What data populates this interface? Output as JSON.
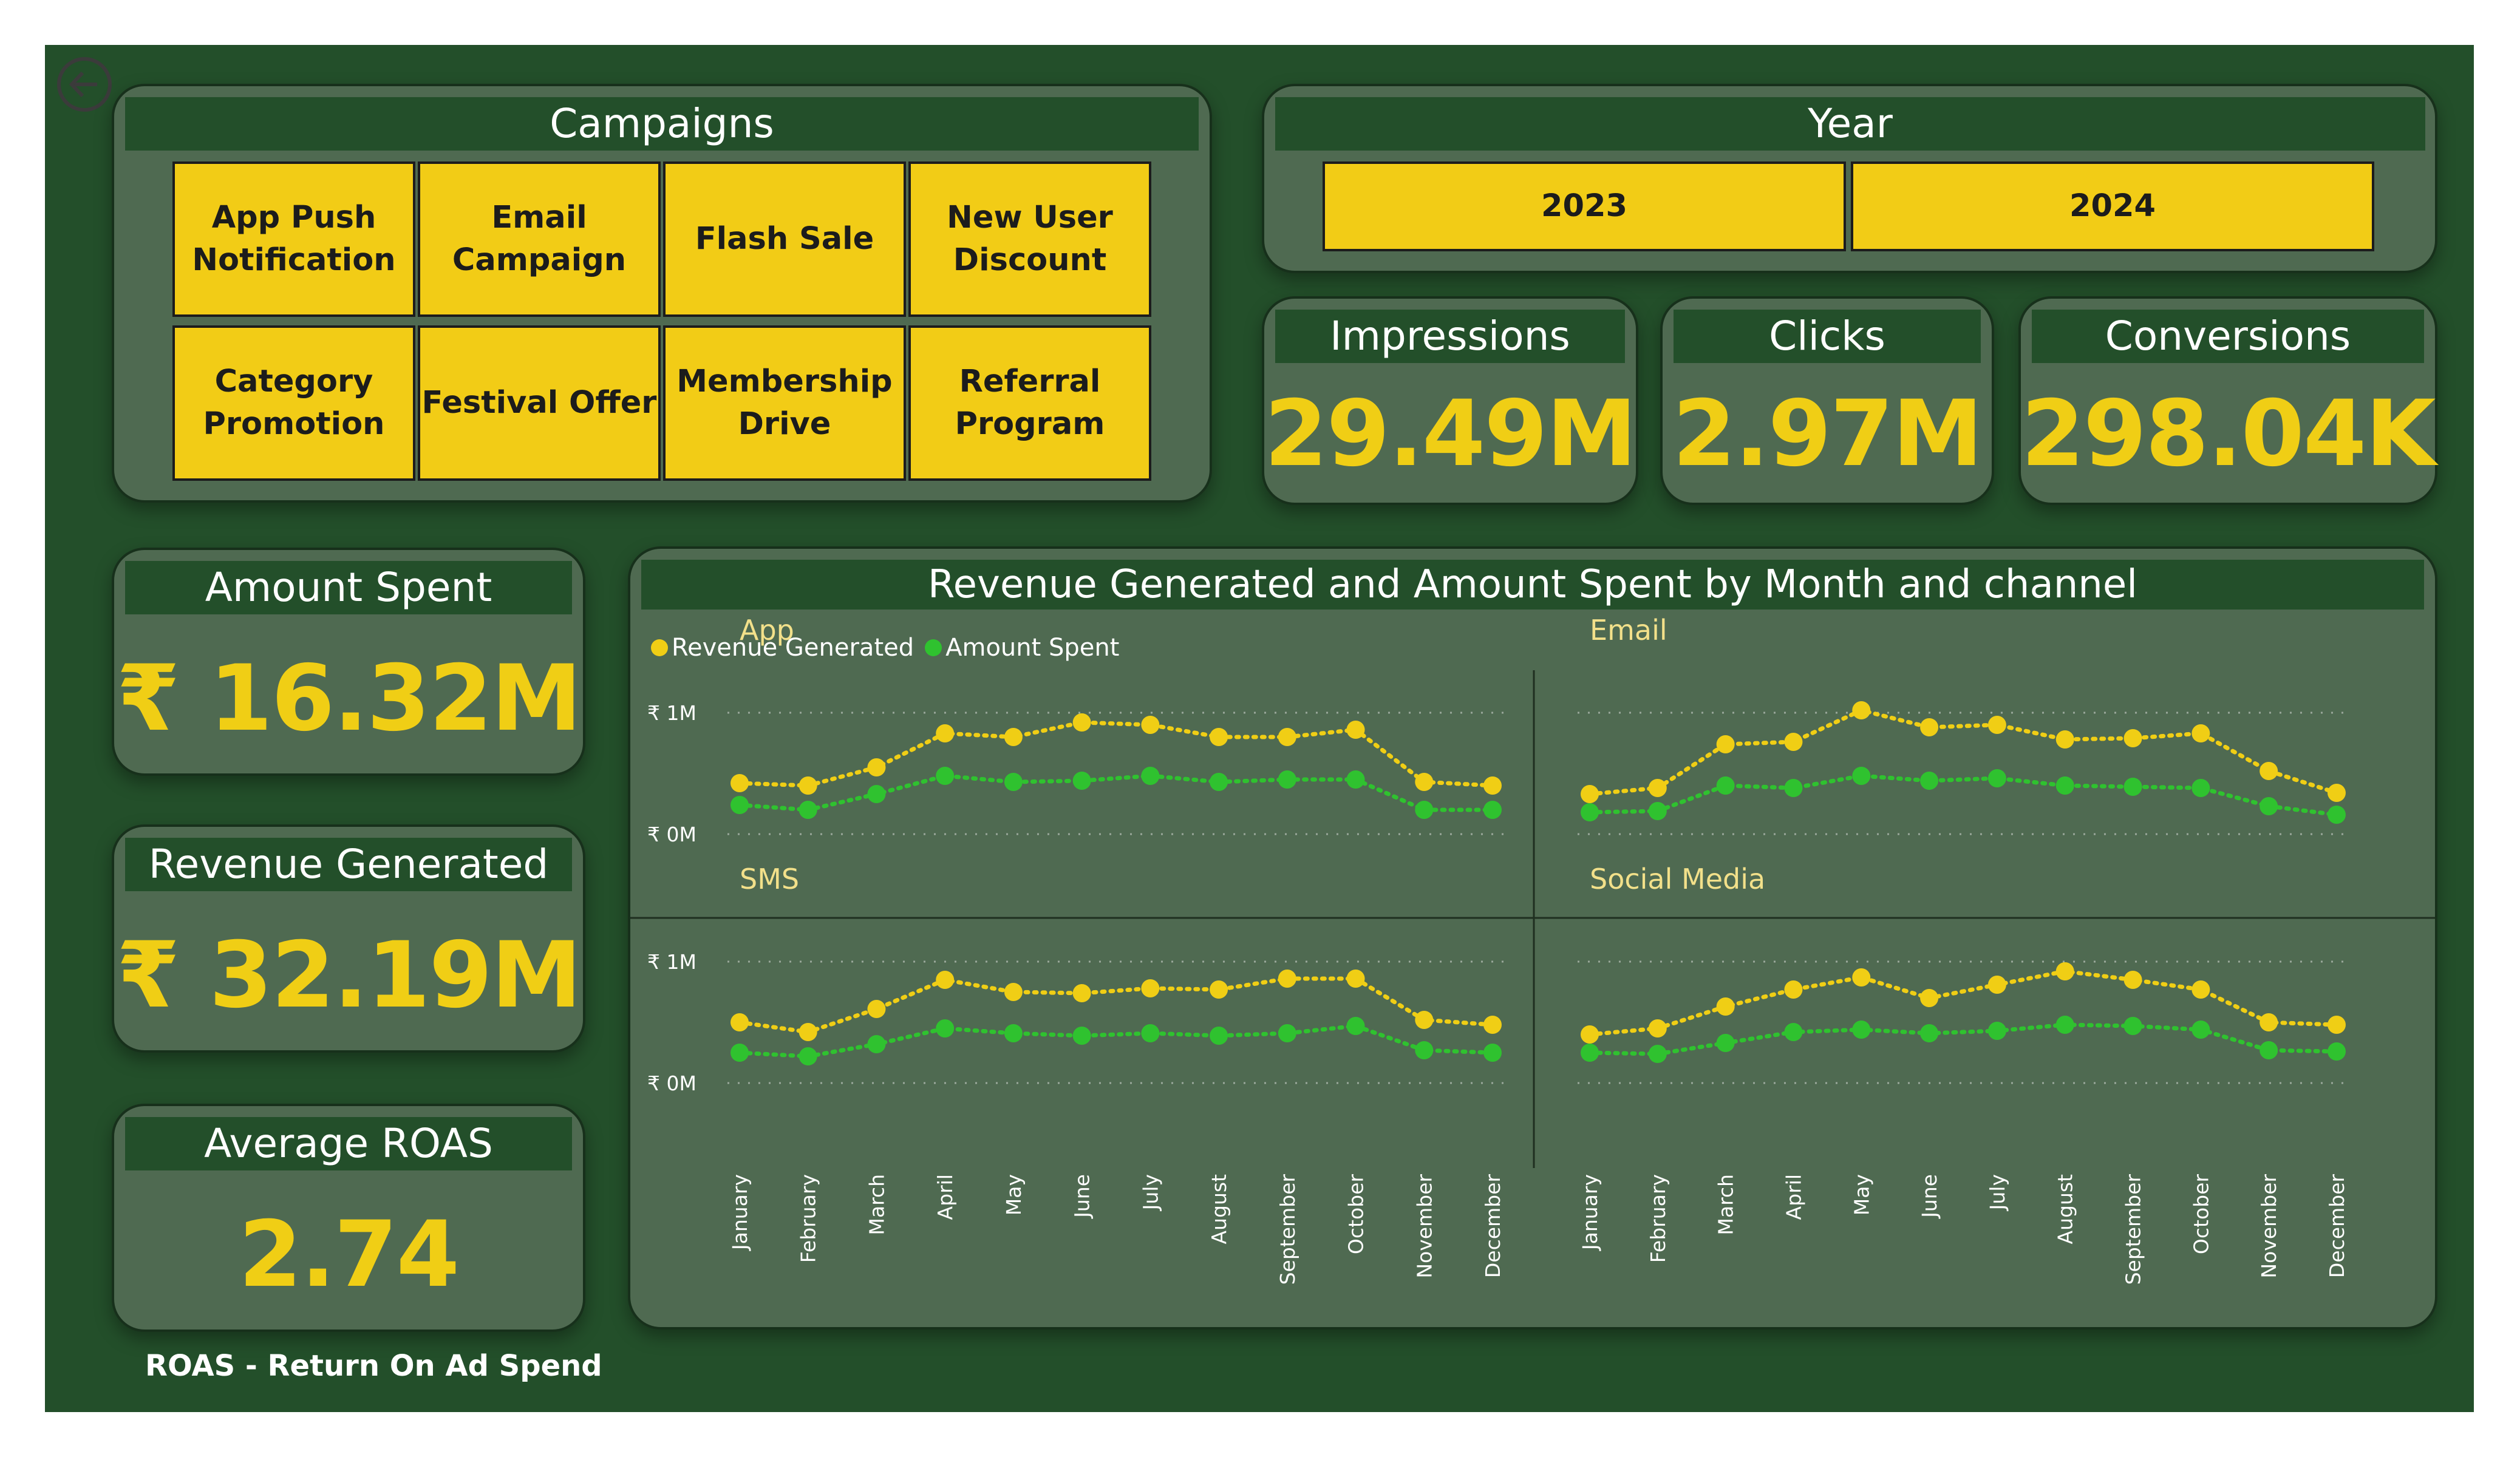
{
  "campaigns": {
    "title": "Campaigns",
    "items": [
      "App Push Notification",
      "Email Campaign",
      "Flash Sale",
      "New User Discount",
      "Category Promotion",
      "Festival Offer",
      "Membership Drive",
      "Referral Program"
    ]
  },
  "year": {
    "title": "Year",
    "options": [
      "2023",
      "2024"
    ]
  },
  "kpis": {
    "impressions": {
      "label": "Impressions",
      "value": "29.49M"
    },
    "clicks": {
      "label": "Clicks",
      "value": "2.97M"
    },
    "conversions": {
      "label": "Conversions",
      "value": "298.04K"
    },
    "amount_spent": {
      "label": "Amount Spent",
      "value": "₹ 16.32M"
    },
    "revenue_generated": {
      "label": "Revenue Generated",
      "value": "₹ 32.19M"
    },
    "average_roas": {
      "label": "Average ROAS",
      "value": "2.74"
    }
  },
  "footnote": "ROAS - Return On Ad Spend",
  "colors": {
    "background": "#234f2a",
    "card": "#4f6a51",
    "accent": "#f2cc16",
    "revenue": "#f0ce15",
    "spent": "#2fc22f"
  },
  "icons": {
    "back": "back-arrow-icon"
  },
  "chart_data": {
    "type": "line",
    "title": "Revenue Generated and Amount Spent by Month and channel",
    "legend": [
      "Revenue Generated",
      "Amount Spent"
    ],
    "legend_position": "top-left",
    "categories": [
      "January",
      "February",
      "March",
      "April",
      "May",
      "June",
      "July",
      "August",
      "September",
      "October",
      "November",
      "December"
    ],
    "yticks": [
      {
        "label": "₹ 1M",
        "value": 1000000
      },
      {
        "label": "₹ 0M",
        "value": 0
      }
    ],
    "ylim": [
      -300000,
      1300000
    ],
    "grid": true,
    "panels": [
      {
        "name": "App",
        "series": [
          {
            "name": "Revenue Generated",
            "values": [
              420000,
              400000,
              550000,
              830000,
              800000,
              920000,
              900000,
              800000,
              800000,
              860000,
              430000,
              400000
            ]
          },
          {
            "name": "Amount Spent",
            "values": [
              240000,
              200000,
              330000,
              480000,
              430000,
              440000,
              480000,
              430000,
              450000,
              450000,
              200000,
              200000
            ]
          }
        ]
      },
      {
        "name": "Email",
        "series": [
          {
            "name": "Revenue Generated",
            "values": [
              330000,
              380000,
              740000,
              760000,
              1020000,
              880000,
              900000,
              780000,
              790000,
              830000,
              520000,
              340000
            ]
          },
          {
            "name": "Amount Spent",
            "values": [
              180000,
              190000,
              400000,
              380000,
              480000,
              440000,
              460000,
              400000,
              390000,
              380000,
              230000,
              160000
            ]
          }
        ]
      },
      {
        "name": "SMS",
        "series": [
          {
            "name": "Revenue Generated",
            "values": [
              500000,
              420000,
              610000,
              850000,
              750000,
              740000,
              780000,
              770000,
              860000,
              860000,
              520000,
              480000
            ]
          },
          {
            "name": "Amount Spent",
            "values": [
              250000,
              220000,
              320000,
              450000,
              410000,
              390000,
              410000,
              390000,
              410000,
              470000,
              270000,
              250000
            ]
          }
        ]
      },
      {
        "name": "Social Media",
        "series": [
          {
            "name": "Revenue Generated",
            "values": [
              400000,
              450000,
              630000,
              770000,
              870000,
              700000,
              810000,
              920000,
              850000,
              770000,
              500000,
              480000
            ]
          },
          {
            "name": "Amount Spent",
            "values": [
              250000,
              240000,
              330000,
              420000,
              440000,
              410000,
              430000,
              480000,
              470000,
              440000,
              270000,
              260000
            ]
          }
        ]
      }
    ]
  }
}
